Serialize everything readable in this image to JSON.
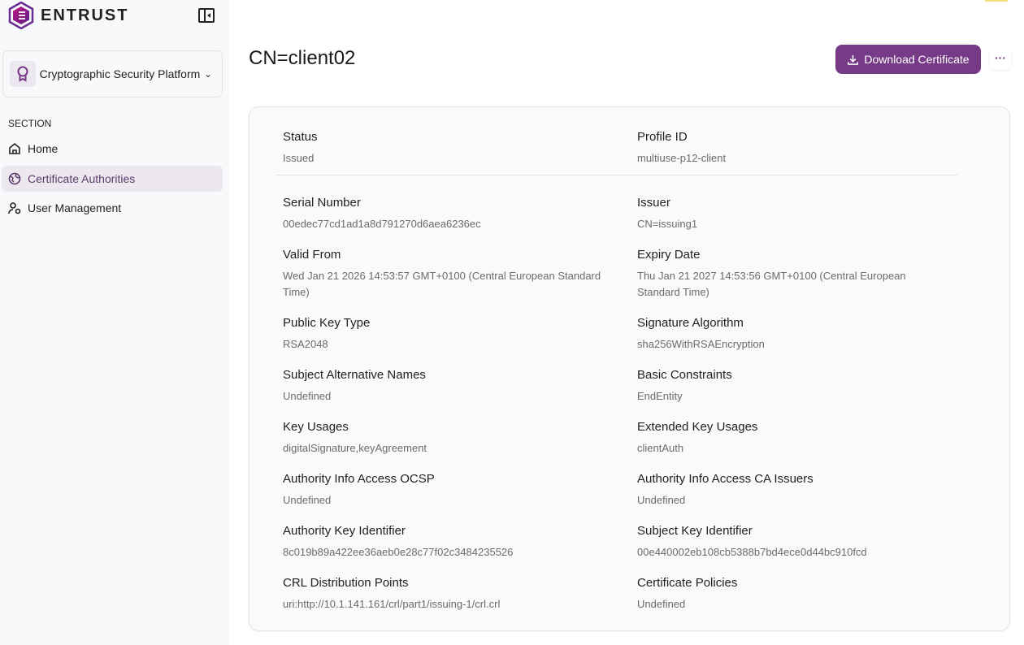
{
  "brand": {
    "name": "ENTRUST",
    "accent": "#763a87"
  },
  "sidebar": {
    "platform": "Cryptographic Security Platform",
    "section": "SECTION",
    "items": [
      {
        "label": "Home",
        "icon": "home-icon"
      },
      {
        "label": "Certificate Authorities",
        "icon": "globe-icon",
        "active": true
      },
      {
        "label": "User Management",
        "icon": "user-gear-icon"
      }
    ]
  },
  "header": {
    "title": "CN=client02",
    "download_label": "Download Certificate",
    "more_label": "···"
  },
  "details": {
    "status": {
      "label": "Status",
      "value": "Issued"
    },
    "profile": {
      "label": "Profile ID",
      "value": "multiuse-p12-client"
    },
    "fields": [
      {
        "label": "Serial Number",
        "value": "00edec77cd1ad1a8d791270d6aea6236ec"
      },
      {
        "label": "Issuer",
        "value": "CN=issuing1"
      },
      {
        "label": "Valid From",
        "value": "Wed Jan 21 2026 14:53:57 GMT+0100 (Central European Standard Time)"
      },
      {
        "label": "Expiry Date",
        "value": "Thu Jan 21 2027 14:53:56 GMT+0100 (Central European Standard Time)"
      },
      {
        "label": "Public Key Type",
        "value": "RSA2048"
      },
      {
        "label": "Signature Algorithm",
        "value": "sha256WithRSAEncryption"
      },
      {
        "label": "Subject Alternative Names",
        "value": "Undefined"
      },
      {
        "label": "Basic Constraints",
        "value": "EndEntity"
      },
      {
        "label": "Key Usages",
        "value": "digitalSignature,keyAgreement"
      },
      {
        "label": "Extended Key Usages",
        "value": "clientAuth"
      },
      {
        "label": "Authority Info Access OCSP",
        "value": "Undefined"
      },
      {
        "label": "Authority Info Access CA Issuers",
        "value": "Undefined"
      },
      {
        "label": "Authority Key Identifier",
        "value": "8c019b89a422ee36aeb0e28c77f02c3484235526"
      },
      {
        "label": "Subject Key Identifier",
        "value": "00e440002eb108cb5388b7bd4ece0d44bc910fcd"
      },
      {
        "label": "CRL Distribution Points",
        "value": "uri:http://10.1.141.161/crl/part1/issuing-1/crl.crl"
      },
      {
        "label": "Certificate Policies",
        "value": "Undefined"
      }
    ]
  }
}
